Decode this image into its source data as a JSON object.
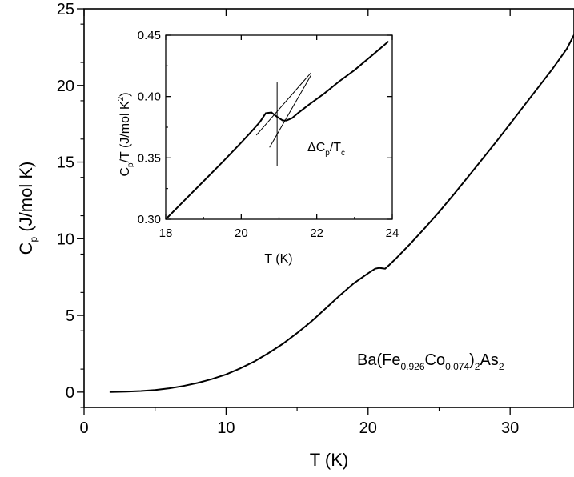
{
  "chart_data": [
    {
      "type": "line",
      "name": "main",
      "xlabel": "T (K)",
      "ylabel": {
        "base": "C",
        "sub": "p",
        "rest": " (J/mol K)"
      },
      "xlim": [
        0,
        34.5
      ],
      "ylim": [
        -1,
        25
      ],
      "xticks": [
        0,
        10,
        20,
        30
      ],
      "yticks": [
        0,
        5,
        10,
        15,
        20,
        25
      ],
      "series": [
        {
          "x": [
            1.8,
            3,
            4,
            5,
            6,
            7,
            8,
            9,
            10,
            11,
            12,
            13,
            14,
            15,
            16,
            17,
            18,
            19,
            20,
            20.5,
            20.8,
            21.2,
            21.5,
            22,
            23,
            24,
            25,
            26,
            27,
            28,
            29,
            30,
            31,
            32,
            33,
            34,
            34.5
          ],
          "y": [
            0.0,
            0.03,
            0.07,
            0.14,
            0.25,
            0.4,
            0.6,
            0.85,
            1.15,
            1.55,
            2.0,
            2.55,
            3.15,
            3.85,
            4.6,
            5.45,
            6.3,
            7.1,
            7.75,
            8.05,
            8.1,
            8.05,
            8.3,
            8.75,
            9.7,
            10.7,
            11.75,
            12.85,
            14.0,
            15.15,
            16.3,
            17.5,
            18.7,
            19.9,
            21.1,
            22.4,
            23.3
          ]
        }
      ],
      "annotation": {
        "prefix": "Ba(Fe",
        "sub1": "0.926",
        "mid": "Co",
        "sub2": "0.074",
        "close": ")",
        "sub3": "2",
        "suffix": "As",
        "sub4": "2"
      }
    },
    {
      "type": "line",
      "name": "inset",
      "xlabel": "T (K)",
      "ylabel": {
        "base": "C",
        "sub": "p",
        "mid": "/T (J/mol K",
        "sup": "2",
        "end": ")"
      },
      "xlim": [
        18,
        24
      ],
      "ylim": [
        0.3,
        0.45
      ],
      "xticks": [
        18,
        20,
        22,
        24
      ],
      "yticks": [
        0.3,
        0.35,
        0.4,
        0.45
      ],
      "series": [
        {
          "x": [
            18,
            18.5,
            19,
            19.5,
            20,
            20.3,
            20.5,
            20.65,
            20.8,
            20.95,
            21.1,
            21.2,
            21.35,
            21.5,
            21.8,
            22.2,
            22.6,
            23,
            23.5,
            23.9
          ],
          "y": [
            0.3,
            0.3155,
            0.331,
            0.3465,
            0.3625,
            0.3725,
            0.3795,
            0.3865,
            0.387,
            0.3835,
            0.3805,
            0.3805,
            0.3825,
            0.3865,
            0.3935,
            0.4025,
            0.4125,
            0.4215,
            0.4345,
            0.445
          ]
        }
      ],
      "guide_lines": [
        {
          "x": [
            20.75,
            21.85
          ],
          "y": [
            0.3585,
            0.4175
          ]
        },
        {
          "x": [
            20.4,
            21.85
          ],
          "y": [
            0.3685,
            0.4195
          ]
        },
        {
          "x": [
            20.95,
            20.95
          ],
          "y": [
            0.3435,
            0.4115
          ]
        }
      ],
      "annotation": {
        "d": "ΔC",
        "sub1": "p",
        "mid": "/T",
        "sub2": "c"
      }
    }
  ]
}
